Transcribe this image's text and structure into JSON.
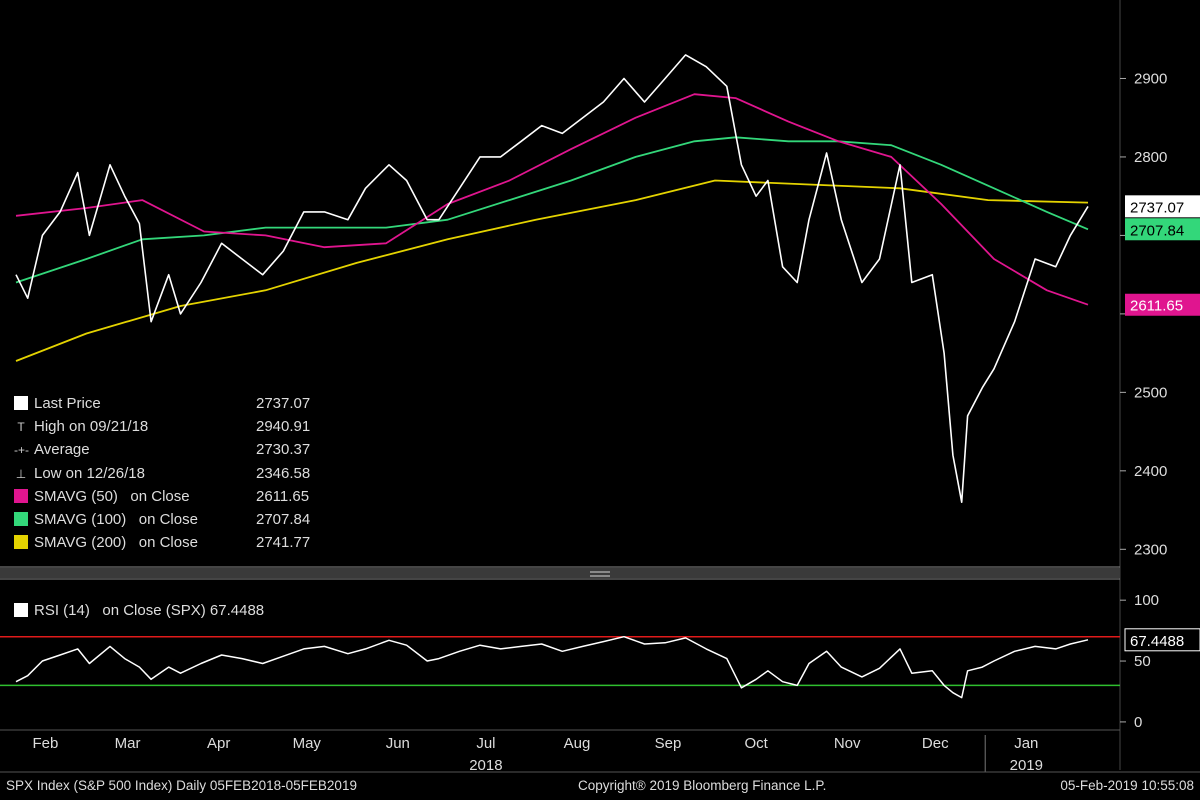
{
  "chart_data": [
    {
      "type": "line",
      "title": "SPX Index (S&P 500 Index)",
      "ylim": [
        2280,
        3000
      ],
      "y_ticks": [
        2300,
        2400,
        2500,
        2600,
        2700,
        2800,
        2900
      ],
      "y_tick_labels": [
        "2300",
        "2400",
        "2500",
        "",
        "",
        "2800",
        "2900"
      ],
      "x_months": [
        "Feb",
        "Mar",
        "Apr",
        "May",
        "Jun",
        "Jul",
        "Aug",
        "Sep",
        "Oct",
        "Nov",
        "Dec",
        "Jan"
      ],
      "x_year_labels": [
        "2018",
        "2019"
      ],
      "series": [
        {
          "name": "Last Price",
          "color": "#ffffff",
          "x": [
            "2018-02-05",
            "2018-02-09",
            "2018-02-14",
            "2018-02-20",
            "2018-02-26",
            "2018-03-02",
            "2018-03-09",
            "2018-03-14",
            "2018-03-19",
            "2018-03-23",
            "2018-03-29",
            "2018-04-02",
            "2018-04-09",
            "2018-04-16",
            "2018-04-23",
            "2018-04-30",
            "2018-05-07",
            "2018-05-14",
            "2018-05-21",
            "2018-05-29",
            "2018-06-04",
            "2018-06-12",
            "2018-06-18",
            "2018-06-25",
            "2018-06-29",
            "2018-07-06",
            "2018-07-13",
            "2018-07-20",
            "2018-07-27",
            "2018-08-03",
            "2018-08-10",
            "2018-08-17",
            "2018-08-24",
            "2018-08-31",
            "2018-09-07",
            "2018-09-14",
            "2018-09-21",
            "2018-09-28",
            "2018-10-05",
            "2018-10-10",
            "2018-10-15",
            "2018-10-19",
            "2018-10-24",
            "2018-10-29",
            "2018-11-02",
            "2018-11-08",
            "2018-11-13",
            "2018-11-20",
            "2018-11-26",
            "2018-12-03",
            "2018-12-07",
            "2018-12-14",
            "2018-12-18",
            "2018-12-21",
            "2018-12-24",
            "2018-12-26",
            "2018-12-31",
            "2019-01-04",
            "2019-01-11",
            "2019-01-18",
            "2019-01-25",
            "2019-01-30",
            "2019-02-05"
          ],
          "values": [
            2650,
            2620,
            2700,
            2730,
            2780,
            2700,
            2790,
            2750,
            2715,
            2590,
            2650,
            2600,
            2640,
            2690,
            2670,
            2650,
            2680,
            2730,
            2730,
            2720,
            2760,
            2790,
            2770,
            2720,
            2720,
            2760,
            2800,
            2800,
            2820,
            2840,
            2830,
            2850,
            2870,
            2900,
            2870,
            2900,
            2930,
            2915,
            2890,
            2790,
            2750,
            2770,
            2660,
            2640,
            2720,
            2805,
            2720,
            2640,
            2670,
            2790,
            2640,
            2650,
            2550,
            2420,
            2360,
            2470,
            2506,
            2530,
            2590,
            2670,
            2660,
            2700,
            2737
          ]
        },
        {
          "name": "SMAVG (50) on Close",
          "color": "#e0158f",
          "x": [
            "2018-02-05",
            "2018-03-01",
            "2018-03-20",
            "2018-04-10",
            "2018-05-01",
            "2018-05-21",
            "2018-06-11",
            "2018-07-02",
            "2018-07-23",
            "2018-08-13",
            "2018-09-04",
            "2018-09-24",
            "2018-10-08",
            "2018-10-26",
            "2018-11-12",
            "2018-11-30",
            "2018-12-17",
            "2019-01-04",
            "2019-01-22",
            "2019-02-05"
          ],
          "values": [
            2725,
            2735,
            2745,
            2705,
            2700,
            2685,
            2690,
            2740,
            2770,
            2810,
            2850,
            2880,
            2875,
            2845,
            2820,
            2800,
            2740,
            2670,
            2630,
            2611.65
          ]
        },
        {
          "name": "SMAVG (100) on Close",
          "color": "#33d77a",
          "x": [
            "2018-02-05",
            "2018-03-01",
            "2018-03-20",
            "2018-04-10",
            "2018-05-01",
            "2018-05-21",
            "2018-06-11",
            "2018-07-02",
            "2018-07-23",
            "2018-08-13",
            "2018-09-04",
            "2018-09-24",
            "2018-10-08",
            "2018-10-26",
            "2018-11-12",
            "2018-11-30",
            "2018-12-17",
            "2019-01-04",
            "2019-01-22",
            "2019-02-05"
          ],
          "values": [
            2640,
            2670,
            2695,
            2700,
            2710,
            2710,
            2710,
            2720,
            2745,
            2770,
            2800,
            2820,
            2825,
            2820,
            2820,
            2815,
            2790,
            2760,
            2730,
            2707.84
          ]
        },
        {
          "name": "SMAVG (200) on Close",
          "color": "#e4d300",
          "x": [
            "2018-02-05",
            "2018-03-01",
            "2018-04-02",
            "2018-05-01",
            "2018-06-01",
            "2018-07-02",
            "2018-08-01",
            "2018-09-04",
            "2018-10-01",
            "2018-11-01",
            "2018-12-03",
            "2019-01-02",
            "2019-02-05"
          ],
          "values": [
            2540,
            2575,
            2610,
            2630,
            2665,
            2695,
            2720,
            2745,
            2770,
            2765,
            2760,
            2745,
            2741.77
          ]
        }
      ],
      "legend": [
        {
          "label": "Last Price",
          "value": "2737.07",
          "marker": "box",
          "color": "#ffffff"
        },
        {
          "label": "High on 09/21/18",
          "value": "2940.91",
          "marker": "T"
        },
        {
          "label": "Average",
          "value": "2730.37",
          "marker": "-+-"
        },
        {
          "label": "Low on 12/26/18",
          "value": "2346.58",
          "marker": "⊥"
        },
        {
          "label": "SMAVG (50)   on Close",
          "value": "2611.65",
          "marker": "box",
          "color": "#e0158f"
        },
        {
          "label": "SMAVG (100)   on Close",
          "value": "2707.84",
          "marker": "box",
          "color": "#33d77a"
        },
        {
          "label": "SMAVG (200)   on Close",
          "value": "2741.77",
          "marker": "box",
          "color": "#e4d300"
        }
      ],
      "price_tags": [
        {
          "text": "2737.07",
          "value": 2737.07,
          "bg": "#ffffff",
          "fg": "#000000"
        },
        {
          "text": "2707.84",
          "value": 2707.84,
          "bg": "#33d77a",
          "fg": "#000000"
        },
        {
          "text": "2611.65",
          "value": 2611.65,
          "bg": "#e0158f",
          "fg": "#ffffff"
        }
      ]
    },
    {
      "type": "line",
      "title": "RSI (14)   on Close (SPX)",
      "ylim": [
        -5,
        110
      ],
      "y_ticks": [
        0,
        50,
        100
      ],
      "y_tick_labels": [
        "0",
        "50",
        "100"
      ],
      "overbought": 70,
      "oversold": 30,
      "overbought_color": "#e11a1a",
      "oversold_color": "#2fbf2f",
      "series": [
        {
          "name": "RSI (14)   on Close (SPX)",
          "color": "#ffffff",
          "x": [
            "2018-02-05",
            "2018-02-09",
            "2018-02-14",
            "2018-02-20",
            "2018-02-26",
            "2018-03-02",
            "2018-03-09",
            "2018-03-14",
            "2018-03-19",
            "2018-03-23",
            "2018-03-29",
            "2018-04-02",
            "2018-04-09",
            "2018-04-16",
            "2018-04-23",
            "2018-04-30",
            "2018-05-07",
            "2018-05-14",
            "2018-05-21",
            "2018-05-29",
            "2018-06-04",
            "2018-06-12",
            "2018-06-18",
            "2018-06-25",
            "2018-06-29",
            "2018-07-06",
            "2018-07-13",
            "2018-07-20",
            "2018-07-27",
            "2018-08-03",
            "2018-08-10",
            "2018-08-17",
            "2018-08-24",
            "2018-08-31",
            "2018-09-07",
            "2018-09-14",
            "2018-09-21",
            "2018-09-28",
            "2018-10-05",
            "2018-10-10",
            "2018-10-15",
            "2018-10-19",
            "2018-10-24",
            "2018-10-29",
            "2018-11-02",
            "2018-11-08",
            "2018-11-13",
            "2018-11-20",
            "2018-11-26",
            "2018-12-03",
            "2018-12-07",
            "2018-12-14",
            "2018-12-18",
            "2018-12-21",
            "2018-12-24",
            "2018-12-26",
            "2018-12-31",
            "2019-01-04",
            "2019-01-11",
            "2019-01-18",
            "2019-01-25",
            "2019-01-30",
            "2019-02-05"
          ],
          "values": [
            33,
            38,
            50,
            55,
            60,
            48,
            62,
            52,
            45,
            35,
            45,
            40,
            48,
            55,
            52,
            48,
            54,
            60,
            62,
            56,
            60,
            67,
            63,
            50,
            52,
            58,
            63,
            60,
            62,
            64,
            58,
            62,
            66,
            70,
            64,
            65,
            69,
            60,
            52,
            28,
            35,
            42,
            33,
            30,
            48,
            58,
            45,
            37,
            44,
            60,
            40,
            42,
            30,
            24,
            20,
            42,
            45,
            50,
            58,
            62,
            60,
            64,
            67.4488
          ]
        }
      ],
      "value_tag": "67.4488"
    }
  ],
  "legend_rsi_label": "RSI (14)   on Close (SPX)",
  "legend_rsi_value": "67.4488",
  "footer": {
    "left": "SPX Index (S&P 500 Index)   Daily 05FEB2018-05FEB2019",
    "center": "Copyright® 2019 Bloomberg Finance L.P.",
    "right": "05-Feb-2019 10:55:08"
  },
  "colors": {
    "background": "#000000",
    "grid": "#1b1b1b",
    "axis_text": "#dddddd",
    "separator": "#8a8a8a"
  }
}
